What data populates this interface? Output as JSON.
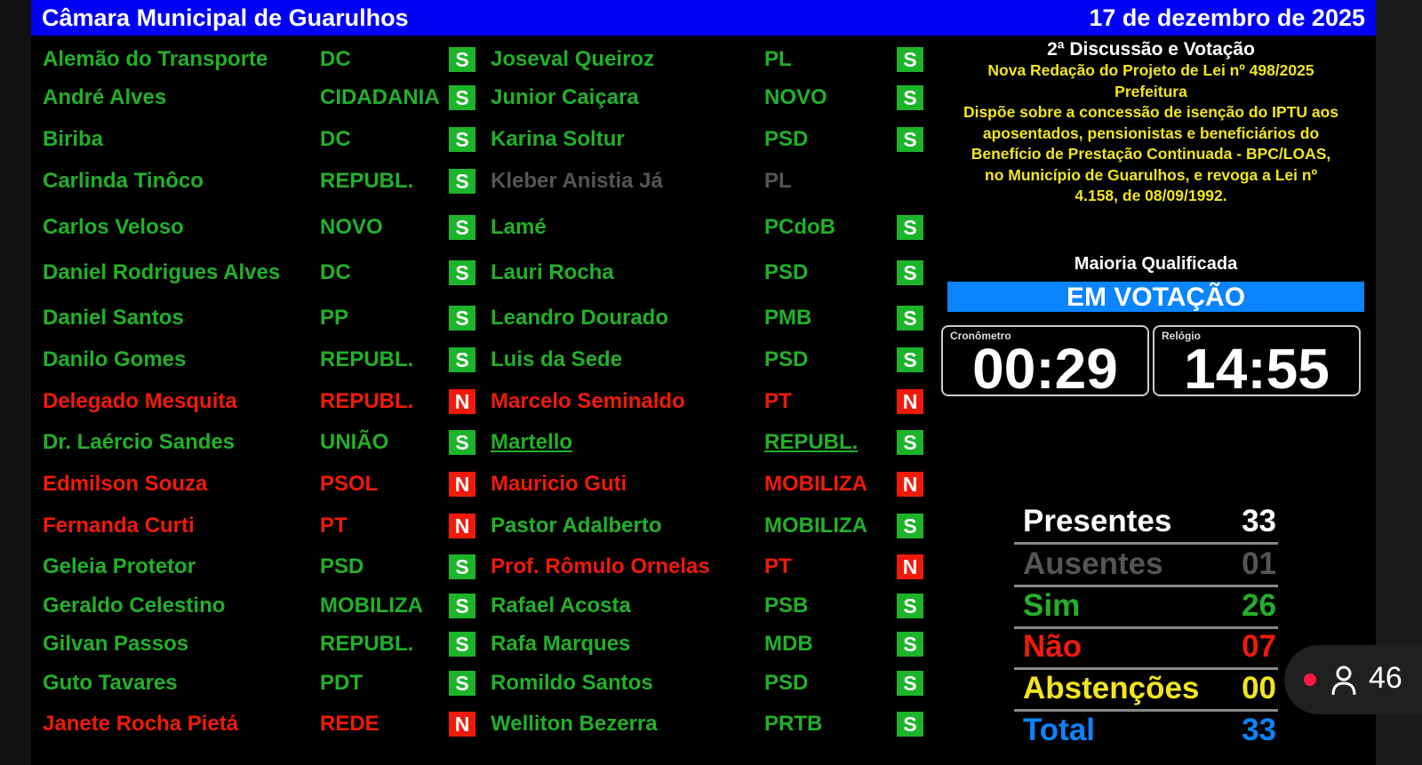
{
  "header": {
    "title": "Câmara Municipal de Guarulhos",
    "date": "17 de dezembro de 2025"
  },
  "colors": {
    "header": "#0000f5",
    "sim": "#22b02a",
    "nao": "#f01a0a",
    "ausente": "#555555",
    "abstencao": "#f2e51f",
    "total": "#0a84ff"
  },
  "columns": [
    [
      {
        "name": "Alemão do Transporte",
        "party": "DC",
        "vote": "S"
      },
      {
        "name": "André Alves",
        "party": "CIDADANIA",
        "vote": "S"
      },
      {
        "name": "Biriba",
        "party": "DC",
        "vote": "S"
      },
      {
        "name": "Carlinda Tinôco",
        "party": "REPUBL.",
        "vote": "S"
      },
      {
        "name": "Carlos Veloso",
        "party": "NOVO",
        "vote": "S"
      },
      {
        "name": "Daniel Rodrigues Alves",
        "party": "DC",
        "vote": "S"
      },
      {
        "name": "Daniel Santos",
        "party": "PP",
        "vote": "S"
      },
      {
        "name": "Danilo Gomes",
        "party": "REPUBL.",
        "vote": "S"
      },
      {
        "name": "Delegado Mesquita",
        "party": "REPUBL.",
        "vote": "N"
      },
      {
        "name": "Dr. Laércio Sandes",
        "party": "UNIÃO",
        "vote": "S"
      },
      {
        "name": "Edmilson Souza",
        "party": "PSOL",
        "vote": "N"
      },
      {
        "name": "Fernanda Curti",
        "party": "PT",
        "vote": "N"
      },
      {
        "name": "Geleia Protetor",
        "party": "PSD",
        "vote": "S"
      },
      {
        "name": "Geraldo Celestino",
        "party": "MOBILIZA",
        "vote": "S"
      },
      {
        "name": "Gilvan Passos",
        "party": "REPUBL.",
        "vote": "S"
      },
      {
        "name": "Guto Tavares",
        "party": "PDT",
        "vote": "S"
      },
      {
        "name": "Janete Rocha Pietá",
        "party": "REDE",
        "vote": "N"
      }
    ],
    [
      {
        "name": "Joseval Queiroz",
        "party": "PL",
        "vote": "S"
      },
      {
        "name": "Junior Caiçara",
        "party": "NOVO",
        "vote": "S"
      },
      {
        "name": "Karina Soltur",
        "party": "PSD",
        "vote": "S"
      },
      {
        "name": "Kleber Anistia Já",
        "party": "PL",
        "vote": ""
      },
      {
        "name": "Lamé",
        "party": "PCdoB",
        "vote": "S"
      },
      {
        "name": "Lauri Rocha",
        "party": "PSD",
        "vote": "S"
      },
      {
        "name": "Leandro Dourado",
        "party": "PMB",
        "vote": "S"
      },
      {
        "name": "Luis da Sede",
        "party": "PSD",
        "vote": "S"
      },
      {
        "name": "Marcelo Seminaldo",
        "party": "PT",
        "vote": "N"
      },
      {
        "name": "Martello",
        "party": "REPUBL.",
        "vote": "S",
        "underlined": true
      },
      {
        "name": "Mauricio Guti",
        "party": "MOBILIZA",
        "vote": "N"
      },
      {
        "name": "Pastor Adalberto",
        "party": "MOBILIZA",
        "vote": "S"
      },
      {
        "name": "Prof. Rômulo Ornelas",
        "party": "PT",
        "vote": "N"
      },
      {
        "name": "Rafael Acosta",
        "party": "PSB",
        "vote": "S"
      },
      {
        "name": "Rafa Marques",
        "party": "MDB",
        "vote": "S"
      },
      {
        "name": "Romildo Santos",
        "party": "PSD",
        "vote": "S"
      },
      {
        "name": "Welliton Bezerra",
        "party": "PRTB",
        "vote": "S"
      }
    ]
  ],
  "info": {
    "session": "2ª Discussão e Votação",
    "lines": [
      "Nova Redação do Projeto de Lei nº 498/2025",
      "Prefeitura",
      "Dispõe sobre a concessão de isenção do IPTU aos",
      "aposentados, pensionistas e beneficiários do",
      "Benefício de Prestação Continuada - BPC/LOAS,",
      "no Município de Guarulhos, e revoga a Lei nº",
      "4.158, de 08/09/1992."
    ]
  },
  "quorum": "Maioria Qualificada",
  "status": "EM VOTAÇÃO",
  "timers": {
    "chrono_label": "Cronômetro",
    "chrono": "00:29",
    "clock_label": "Relógio",
    "clock": "14:55"
  },
  "stats": [
    {
      "label": "Presentes",
      "value": "33",
      "color": "#ffffff"
    },
    {
      "label": "Ausentes",
      "value": "01",
      "color": "#555555"
    },
    {
      "label": "Sim",
      "value": "26",
      "color": "#22b02a"
    },
    {
      "label": "Não",
      "value": "07",
      "color": "#f01a0a"
    },
    {
      "label": "Abstenções",
      "value": "00",
      "color": "#f2e51f"
    },
    {
      "label": "Total",
      "value": "33",
      "color": "#0a84ff"
    }
  ],
  "overlay": {
    "viewers": "46",
    "icons": [
      "live-dot-icon",
      "person-icon"
    ]
  }
}
